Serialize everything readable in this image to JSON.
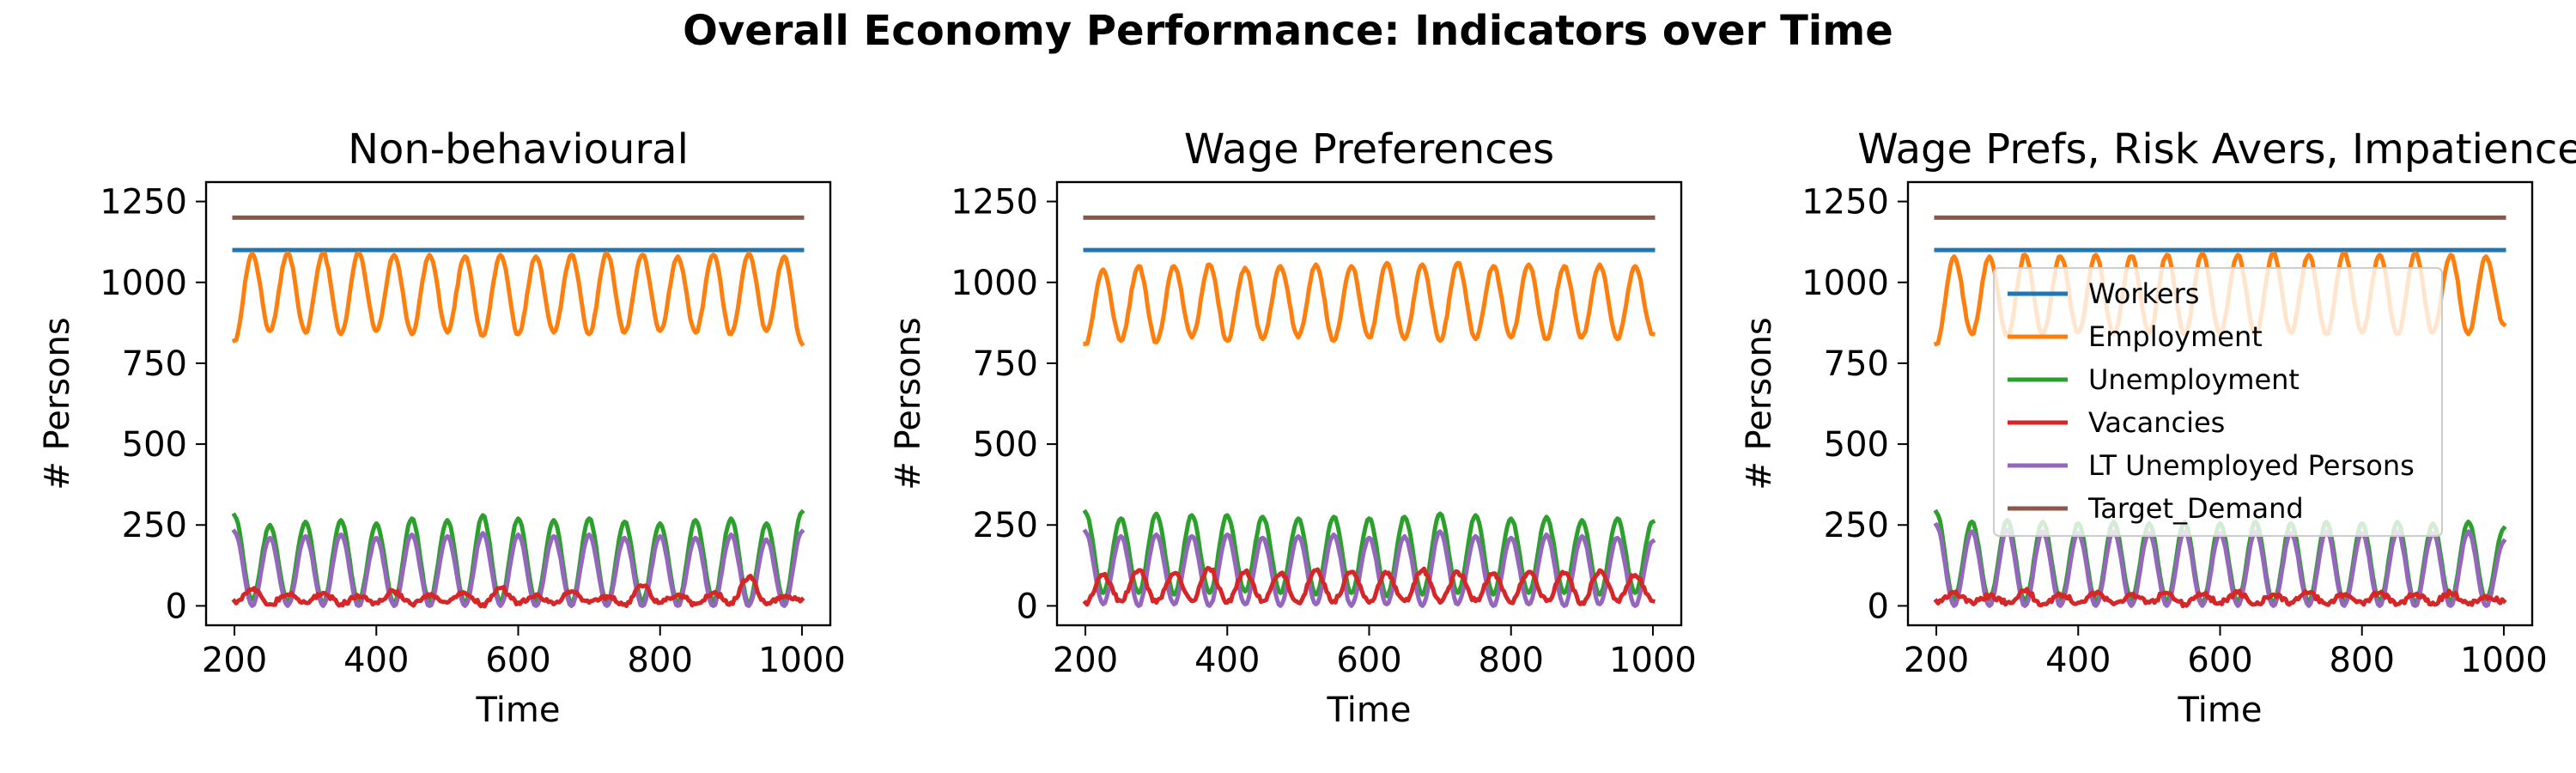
{
  "title": "Overall Economy Performance: Indicators over Time",
  "colors": {
    "Workers": "#1f77b4",
    "Employment": "#ff7f0e",
    "Unemployment": "#2ca02c",
    "Vacancies": "#d62728",
    "LT Unemployed Persons": "#9467bd",
    "Target_Demand": "#8c564b"
  },
  "chart_data": [
    {
      "type": "line",
      "title": "Non-behavioural",
      "xlabel": "Time",
      "ylabel": "# Persons",
      "xlim": [
        160,
        1040
      ],
      "ylim": [
        -60,
        1310
      ],
      "xticks": [
        200,
        400,
        600,
        800,
        1000
      ],
      "yticks": [
        0,
        250,
        500,
        750,
        1000,
        1250
      ],
      "grid": false,
      "legend": "none",
      "cycle_period": 50,
      "series": [
        {
          "name": "Workers",
          "x": [
            200,
            1000
          ],
          "values": [
            1100,
            1100
          ]
        },
        {
          "name": "Target_Demand",
          "x": [
            200,
            1000
          ],
          "values": [
            1200,
            1200
          ]
        },
        {
          "name": "Employment",
          "x": [
            200,
            225,
            250,
            275,
            300,
            325,
            350,
            375,
            400,
            425,
            450,
            475,
            500,
            525,
            550,
            575,
            600,
            625,
            650,
            675,
            700,
            725,
            750,
            775,
            800,
            825,
            850,
            875,
            900,
            925,
            950,
            975,
            1000
          ],
          "values": [
            820,
            1090,
            850,
            1090,
            845,
            1090,
            840,
            1090,
            850,
            1085,
            840,
            1085,
            845,
            1080,
            835,
            1085,
            840,
            1080,
            845,
            1085,
            840,
            1090,
            845,
            1085,
            850,
            1080,
            845,
            1085,
            840,
            1090,
            850,
            1080,
            810
          ]
        },
        {
          "name": "Unemployment",
          "x": [
            200,
            225,
            250,
            275,
            300,
            325,
            350,
            375,
            400,
            425,
            450,
            475,
            500,
            525,
            550,
            575,
            600,
            625,
            650,
            675,
            700,
            725,
            750,
            775,
            800,
            825,
            850,
            875,
            900,
            925,
            950,
            975,
            1000
          ],
          "values": [
            280,
            20,
            250,
            15,
            260,
            10,
            265,
            15,
            255,
            10,
            270,
            15,
            265,
            10,
            280,
            15,
            270,
            15,
            265,
            10,
            270,
            10,
            260,
            15,
            255,
            10,
            265,
            15,
            270,
            10,
            255,
            15,
            290
          ]
        },
        {
          "name": "LT Unemployed Persons",
          "x": [
            200,
            225,
            250,
            275,
            300,
            325,
            350,
            375,
            400,
            425,
            450,
            475,
            500,
            525,
            550,
            575,
            600,
            625,
            650,
            675,
            700,
            725,
            750,
            775,
            800,
            825,
            850,
            875,
            900,
            925,
            950,
            975,
            1000
          ],
          "values": [
            230,
            0,
            210,
            0,
            215,
            0,
            220,
            0,
            210,
            0,
            220,
            0,
            215,
            0,
            225,
            0,
            220,
            0,
            215,
            0,
            220,
            0,
            210,
            0,
            215,
            0,
            210,
            0,
            220,
            0,
            205,
            0,
            230
          ]
        },
        {
          "name": "Vacancies",
          "x": [
            200,
            225,
            250,
            275,
            300,
            325,
            350,
            375,
            400,
            425,
            450,
            475,
            500,
            525,
            550,
            575,
            600,
            625,
            650,
            675,
            700,
            725,
            750,
            775,
            800,
            825,
            850,
            875,
            900,
            925,
            950,
            975,
            1000
          ],
          "values": [
            15,
            50,
            5,
            35,
            10,
            40,
            5,
            30,
            10,
            45,
            5,
            30,
            10,
            40,
            5,
            55,
            10,
            35,
            5,
            45,
            10,
            30,
            5,
            60,
            10,
            35,
            5,
            40,
            10,
            90,
            5,
            30,
            20
          ]
        }
      ]
    },
    {
      "type": "line",
      "title": "Wage Preferences",
      "xlabel": "Time",
      "ylabel": "# Persons",
      "xlim": [
        160,
        1040
      ],
      "ylim": [
        -60,
        1310
      ],
      "xticks": [
        200,
        400,
        600,
        800,
        1000
      ],
      "yticks": [
        0,
        250,
        500,
        750,
        1000,
        1250
      ],
      "grid": false,
      "legend": "none",
      "cycle_period": 50,
      "series": [
        {
          "name": "Workers",
          "x": [
            200,
            1000
          ],
          "values": [
            1100,
            1100
          ]
        },
        {
          "name": "Target_Demand",
          "x": [
            200,
            1000
          ],
          "values": [
            1200,
            1200
          ]
        },
        {
          "name": "Employment",
          "x": [
            200,
            225,
            250,
            275,
            300,
            325,
            350,
            375,
            400,
            425,
            450,
            475,
            500,
            525,
            550,
            575,
            600,
            625,
            650,
            675,
            700,
            725,
            750,
            775,
            800,
            825,
            850,
            875,
            900,
            925,
            950,
            975,
            1000
          ],
          "values": [
            810,
            1040,
            820,
            1050,
            815,
            1050,
            830,
            1055,
            820,
            1045,
            825,
            1050,
            830,
            1055,
            820,
            1050,
            830,
            1060,
            825,
            1055,
            820,
            1060,
            825,
            1050,
            830,
            1055,
            825,
            1050,
            830,
            1055,
            825,
            1050,
            840
          ]
        },
        {
          "name": "Unemployment",
          "x": [
            200,
            225,
            250,
            275,
            300,
            325,
            350,
            375,
            400,
            425,
            450,
            475,
            500,
            525,
            550,
            575,
            600,
            625,
            650,
            675,
            700,
            725,
            750,
            775,
            800,
            825,
            850,
            875,
            900,
            925,
            950,
            975,
            1000
          ],
          "values": [
            290,
            40,
            270,
            40,
            285,
            35,
            280,
            40,
            280,
            45,
            275,
            40,
            270,
            35,
            275,
            40,
            270,
            30,
            275,
            35,
            285,
            40,
            280,
            35,
            270,
            40,
            275,
            40,
            265,
            35,
            270,
            40,
            260
          ]
        },
        {
          "name": "LT Unemployed Persons",
          "x": [
            200,
            225,
            250,
            275,
            300,
            325,
            350,
            375,
            400,
            425,
            450,
            475,
            500,
            525,
            550,
            575,
            600,
            625,
            650,
            675,
            700,
            725,
            750,
            775,
            800,
            825,
            850,
            875,
            900,
            925,
            950,
            975,
            1000
          ],
          "values": [
            230,
            5,
            215,
            0,
            220,
            5,
            215,
            0,
            220,
            5,
            210,
            0,
            215,
            5,
            220,
            0,
            210,
            5,
            215,
            0,
            230,
            5,
            215,
            0,
            210,
            5,
            220,
            0,
            215,
            5,
            210,
            0,
            200
          ]
        },
        {
          "name": "Vacancies",
          "x": [
            200,
            225,
            250,
            275,
            300,
            325,
            350,
            375,
            400,
            425,
            450,
            475,
            500,
            525,
            550,
            575,
            600,
            625,
            650,
            675,
            700,
            725,
            750,
            775,
            800,
            825,
            850,
            875,
            900,
            925,
            950,
            975,
            1000
          ],
          "values": [
            10,
            95,
            15,
            110,
            10,
            100,
            15,
            115,
            10,
            105,
            15,
            100,
            10,
            110,
            15,
            105,
            10,
            100,
            15,
            110,
            10,
            105,
            15,
            100,
            10,
            105,
            15,
            100,
            10,
            110,
            15,
            95,
            15
          ]
        }
      ]
    },
    {
      "type": "line",
      "title": "Wage Prefs, Risk Avers, Impatience",
      "xlabel": "Time",
      "ylabel": "# Persons",
      "xlim": [
        160,
        1040
      ],
      "ylim": [
        -60,
        1310
      ],
      "xticks": [
        200,
        400,
        600,
        800,
        1000
      ],
      "yticks": [
        0,
        250,
        500,
        750,
        1000,
        1250
      ],
      "grid": false,
      "legend": "center-right",
      "cycle_period": 50,
      "series": [
        {
          "name": "Workers",
          "x": [
            200,
            1000
          ],
          "values": [
            1100,
            1100
          ]
        },
        {
          "name": "Target_Demand",
          "x": [
            200,
            1000
          ],
          "values": [
            1200,
            1200
          ]
        },
        {
          "name": "Employment",
          "x": [
            200,
            225,
            250,
            275,
            300,
            325,
            350,
            375,
            400,
            425,
            450,
            475,
            500,
            525,
            550,
            575,
            600,
            625,
            650,
            675,
            700,
            725,
            750,
            775,
            800,
            825,
            850,
            875,
            900,
            925,
            950,
            975,
            1000
          ],
          "values": [
            810,
            1080,
            840,
            1080,
            835,
            1085,
            840,
            1080,
            845,
            1085,
            840,
            1080,
            845,
            1085,
            840,
            1090,
            845,
            1085,
            840,
            1090,
            845,
            1085,
            840,
            1090,
            845,
            1085,
            840,
            1090,
            845,
            1085,
            840,
            1080,
            870
          ]
        },
        {
          "name": "Unemployment",
          "x": [
            200,
            225,
            250,
            275,
            300,
            325,
            350,
            375,
            400,
            425,
            450,
            475,
            500,
            525,
            550,
            575,
            600,
            625,
            650,
            675,
            700,
            725,
            750,
            775,
            800,
            825,
            850,
            875,
            900,
            925,
            950,
            975,
            1000
          ],
          "values": [
            290,
            20,
            260,
            20,
            265,
            15,
            260,
            20,
            255,
            15,
            260,
            20,
            255,
            15,
            260,
            10,
            255,
            15,
            260,
            10,
            255,
            15,
            260,
            10,
            255,
            15,
            260,
            10,
            255,
            15,
            260,
            20,
            240
          ]
        },
        {
          "name": "LT Unemployed Persons",
          "x": [
            200,
            225,
            250,
            275,
            300,
            325,
            350,
            375,
            400,
            425,
            450,
            475,
            500,
            525,
            550,
            575,
            600,
            625,
            650,
            675,
            700,
            725,
            750,
            775,
            800,
            825,
            850,
            875,
            900,
            925,
            950,
            975,
            1000
          ],
          "values": [
            250,
            0,
            230,
            0,
            235,
            0,
            230,
            0,
            225,
            0,
            230,
            0,
            225,
            0,
            230,
            0,
            225,
            0,
            230,
            0,
            225,
            0,
            230,
            0,
            225,
            0,
            230,
            0,
            225,
            0,
            230,
            0,
            200
          ]
        },
        {
          "name": "Vacancies",
          "x": [
            200,
            225,
            250,
            275,
            300,
            325,
            350,
            375,
            400,
            425,
            450,
            475,
            500,
            525,
            550,
            575,
            600,
            625,
            650,
            675,
            700,
            725,
            750,
            775,
            800,
            825,
            850,
            875,
            900,
            925,
            950,
            975,
            1000
          ],
          "values": [
            15,
            40,
            10,
            30,
            10,
            45,
            5,
            35,
            10,
            40,
            5,
            35,
            10,
            40,
            5,
            35,
            10,
            40,
            5,
            35,
            10,
            40,
            5,
            35,
            10,
            40,
            5,
            35,
            10,
            40,
            5,
            30,
            15
          ]
        }
      ]
    }
  ]
}
